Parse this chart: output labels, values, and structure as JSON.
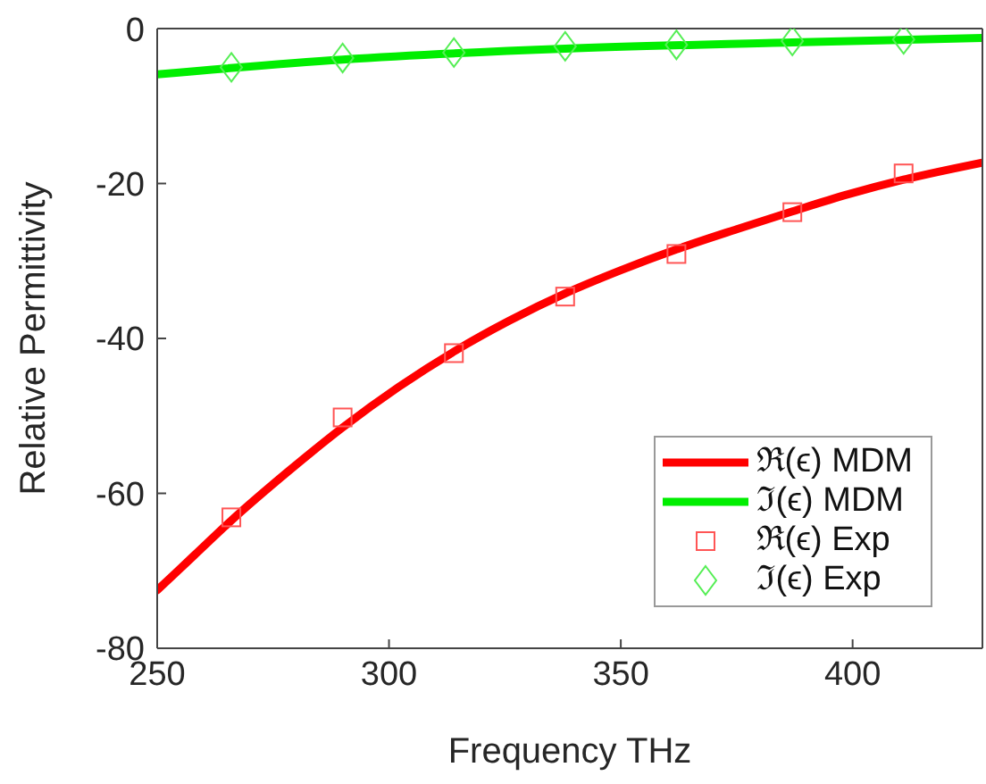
{
  "chart_data": {
    "type": "line",
    "xlabel": "Frequency THz",
    "ylabel": "Relative Permittivity",
    "xlim": [
      250,
      428
    ],
    "ylim": [
      -80,
      0
    ],
    "xticks": [
      250,
      300,
      350,
      400
    ],
    "yticks": [
      -80,
      -60,
      -40,
      -20,
      0
    ],
    "legend": "bottom right",
    "series": [
      {
        "name": "ℜ(ϵ) MDM",
        "color": "#ff0000",
        "marker": "none",
        "x": [
          250,
          258,
          266,
          278,
          290,
          302,
          314,
          326,
          338,
          350,
          362,
          375,
          387,
          399,
          411,
          428
        ],
        "values": [
          -72.5,
          -68,
          -63.5,
          -57.3,
          -51.5,
          -46.3,
          -41.7,
          -37.7,
          -34.2,
          -31.2,
          -28.5,
          -25.9,
          -23.6,
          -21.4,
          -19.5,
          -17.3
        ]
      },
      {
        "name": "ℑ(ϵ) MDM",
        "color": "#00ee00",
        "marker": "none",
        "x": [
          250,
          290,
          338,
          387,
          428
        ],
        "values": [
          -5.9,
          -4,
          -2.6,
          -1.8,
          -1.2
        ]
      },
      {
        "name": "ℜ(ϵ) Exp",
        "type": "scatter",
        "color": "#ff5555",
        "marker": "square",
        "x": [
          266,
          290,
          314,
          338,
          362,
          387,
          411
        ],
        "values": [
          -63.1,
          -50.2,
          -41.9,
          -34.6,
          -29.1,
          -23.7,
          -18.7
        ]
      },
      {
        "name": "ℑ(ϵ) Exp",
        "type": "scatter",
        "color": "#55ee55",
        "marker": "diamond",
        "x": [
          266,
          290,
          314,
          338,
          362,
          387,
          411
        ],
        "values": [
          -5,
          -3.8,
          -3.1,
          -2.3,
          -2.1,
          -1.6,
          -1.4
        ]
      }
    ]
  }
}
